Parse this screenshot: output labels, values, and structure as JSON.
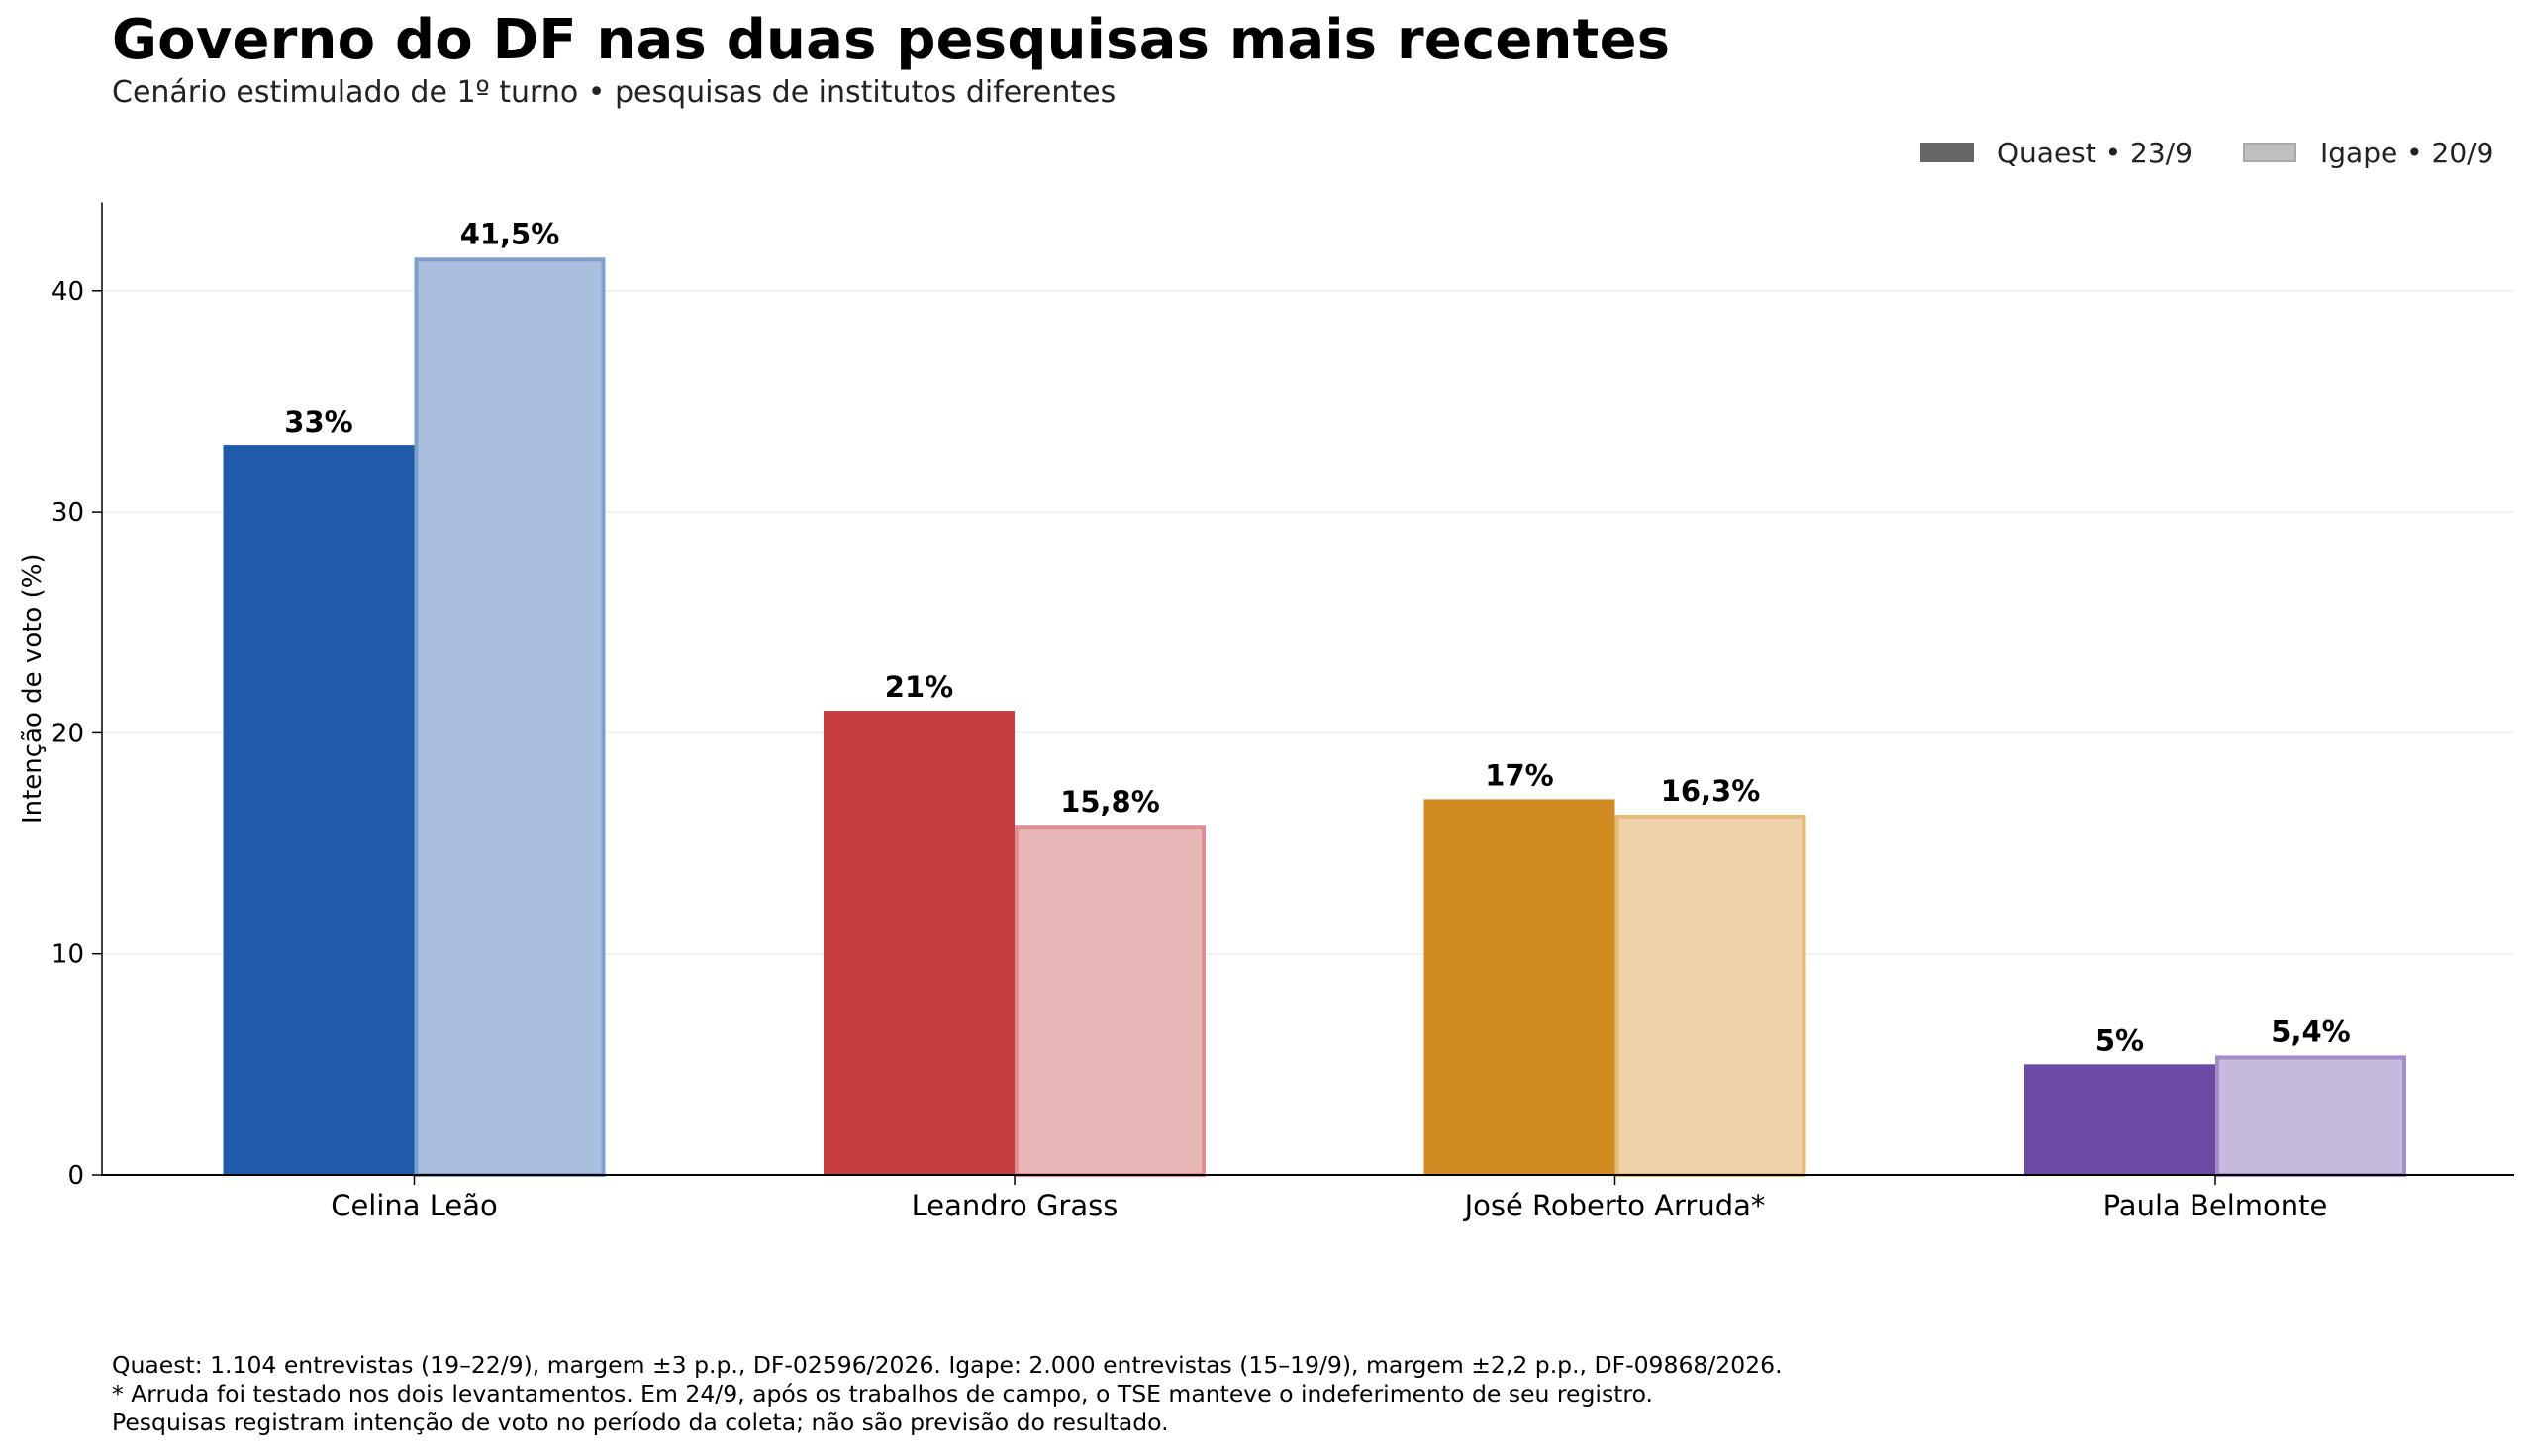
{
  "title": "Governo do DF nas duas pesquisas mais recentes",
  "subtitle": "Cenário estimulado de 1º turno • pesquisas de institutos diferentes",
  "legend": [
    {
      "label": "Quaest • 23/9",
      "color": "#666666"
    },
    {
      "label": "Igape • 20/9",
      "color": "#c0c0c0"
    }
  ],
  "colors": {
    "Celina Leão": {
      "dark": "#1f5ba8",
      "light": "#aabfde",
      "edge": "#7f9fcc"
    },
    "Leandro Grass": {
      "dark": "#c53d3e",
      "light": "#e8b6b7",
      "edge": "#dc8f90"
    },
    "José Roberto Arruda*": {
      "dark": "#d08b22",
      "light": "#eed3aa",
      "edge": "#e6bb78"
    },
    "Paula Belmonte": {
      "dark": "#6b4ba3",
      "light": "#c5b9dd",
      "edge": "#a28fca"
    }
  },
  "chart_data": {
    "type": "bar",
    "categories": [
      "Celina Leão",
      "Leandro Grass",
      "José Roberto Arruda*",
      "Paula Belmonte"
    ],
    "series": [
      {
        "name": "Quaest • 23/9",
        "values": [
          33,
          21,
          17,
          5
        ],
        "labels": [
          "33%",
          "21%",
          "17%",
          "5%"
        ]
      },
      {
        "name": "Igape • 20/9",
        "values": [
          41.5,
          15.8,
          16.3,
          5.4
        ],
        "labels": [
          "41,5%",
          "15,8%",
          "16,3%",
          "5,4%"
        ]
      }
    ],
    "ylabel": "Intenção de voto (%)",
    "xlabel": "",
    "ylim": [
      0,
      44
    ],
    "yticks": [
      0,
      10,
      20,
      30,
      40
    ],
    "grid": true,
    "legend_position": "top-right"
  },
  "footnotes": [
    "Quaest: 1.104 entrevistas (19–22/9), margem ±3 p.p., DF-02596/2026. Igape: 2.000 entrevistas (15–19/9), margem ±2,2 p.p., DF-09868/2026.",
    "* Arruda foi testado nos dois levantamentos. Em 24/9, após os trabalhos de campo, o TSE manteve o indeferimento de seu registro.",
    "Pesquisas registram intenção de voto no período da coleta; não são previsão do resultado."
  ]
}
